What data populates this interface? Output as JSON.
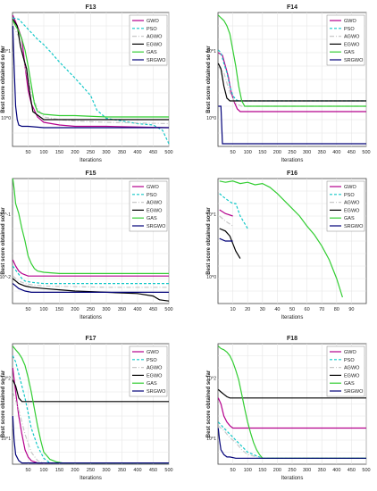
{
  "chart_data": [
    {
      "type": "line",
      "title": "F13",
      "xlabel": "Iterations",
      "ylabel": "Best score obtained so far",
      "xlim": [
        0,
        500
      ],
      "ylim": [
        0,
        1
      ],
      "y_scale": "log",
      "xticks": [
        50,
        100,
        150,
        200,
        250,
        300,
        350,
        400,
        450,
        500
      ],
      "ytick_labels": [
        "10^0",
        "10^1"
      ],
      "grid": true,
      "legend_position": "top-right",
      "series": [
        {
          "name": "GWO",
          "x": [
            1,
            10,
            20,
            30,
            40,
            50,
            60,
            80,
            100,
            150,
            200,
            300,
            500
          ],
          "y": [
            0.98,
            0.93,
            0.87,
            0.8,
            0.6,
            0.42,
            0.32,
            0.22,
            0.18,
            0.16,
            0.15,
            0.15,
            0.14
          ]
        },
        {
          "name": "PSO",
          "x": [
            1,
            20,
            40,
            60,
            80,
            100,
            120,
            150,
            200,
            250,
            270,
            300,
            350,
            400,
            450,
            480,
            500
          ],
          "y": [
            0.96,
            0.95,
            0.9,
            0.85,
            0.8,
            0.76,
            0.71,
            0.63,
            0.51,
            0.38,
            0.27,
            0.21,
            0.19,
            0.17,
            0.16,
            0.12,
            0.02
          ]
        },
        {
          "name": "AGWO",
          "x": [
            1,
            20,
            40,
            60,
            80,
            100,
            150,
            200,
            300,
            500
          ],
          "y": [
            0.9,
            0.82,
            0.6,
            0.4,
            0.28,
            0.22,
            0.2,
            0.19,
            0.18,
            0.17
          ]
        },
        {
          "name": "EGWO",
          "x": [
            1,
            15,
            25,
            35,
            45,
            55,
            65,
            100,
            150,
            300,
            500
          ],
          "y": [
            0.95,
            0.9,
            0.75,
            0.66,
            0.58,
            0.4,
            0.26,
            0.2,
            0.2,
            0.2,
            0.2
          ]
        },
        {
          "name": "GAS",
          "x": [
            1,
            10,
            20,
            30,
            40,
            50,
            60,
            70,
            80,
            100,
            150,
            200,
            300,
            500
          ],
          "y": [
            0.94,
            0.9,
            0.86,
            0.8,
            0.72,
            0.6,
            0.46,
            0.32,
            0.26,
            0.24,
            0.23,
            0.23,
            0.22,
            0.22
          ]
        },
        {
          "name": "SRGWO",
          "x": [
            1,
            5,
            10,
            15,
            20,
            30,
            50,
            100,
            200,
            300,
            500
          ],
          "y": [
            0.9,
            0.6,
            0.3,
            0.2,
            0.16,
            0.15,
            0.15,
            0.14,
            0.14,
            0.14,
            0.14
          ]
        }
      ]
    },
    {
      "type": "line",
      "title": "F14",
      "xlabel": "Iterations",
      "ylabel": "Best score obtained so far",
      "xlim": [
        0,
        500
      ],
      "ylim": [
        0,
        1
      ],
      "y_scale": "log",
      "xticks": [
        50,
        100,
        150,
        200,
        250,
        300,
        350,
        400,
        450,
        500
      ],
      "ytick_labels": [
        "10^0",
        "10^1"
      ],
      "grid": true,
      "legend_position": "top-right",
      "series": [
        {
          "name": "GWO",
          "x": [
            1,
            15,
            25,
            35,
            45,
            55,
            65,
            75,
            500
          ],
          "y": [
            0.7,
            0.68,
            0.6,
            0.52,
            0.4,
            0.33,
            0.28,
            0.26,
            0.26
          ]
        },
        {
          "name": "PSO",
          "x": [
            1,
            10,
            20,
            30,
            40,
            50,
            60,
            70,
            500
          ],
          "y": [
            0.72,
            0.7,
            0.62,
            0.55,
            0.45,
            0.38,
            0.35,
            0.34,
            0.34
          ]
        },
        {
          "name": "AGWO",
          "x": [
            1,
            20,
            40,
            60,
            80,
            500
          ],
          "y": [
            0.6,
            0.55,
            0.4,
            0.32,
            0.3,
            0.3
          ]
        },
        {
          "name": "EGWO",
          "x": [
            1,
            10,
            20,
            30,
            40,
            50,
            60,
            500
          ],
          "y": [
            0.62,
            0.58,
            0.45,
            0.36,
            0.34,
            0.34,
            0.34,
            0.34
          ]
        },
        {
          "name": "GAS",
          "x": [
            1,
            10,
            20,
            30,
            40,
            50,
            60,
            70,
            80,
            90,
            500
          ],
          "y": [
            0.98,
            0.96,
            0.94,
            0.9,
            0.84,
            0.72,
            0.6,
            0.45,
            0.34,
            0.3,
            0.3
          ]
        },
        {
          "name": "SRGWO",
          "x": [
            1,
            10,
            15,
            20,
            500
          ],
          "y": [
            0.3,
            0.3,
            0.02,
            0.02,
            0.02
          ]
        }
      ]
    },
    {
      "type": "line",
      "title": "F15",
      "xlabel": "Iterations",
      "ylabel": "Best score obtained so far",
      "xlim": [
        0,
        500
      ],
      "ylim": [
        0,
        1
      ],
      "y_scale": "log",
      "xticks": [
        50,
        100,
        150,
        200,
        250,
        300,
        350,
        400,
        450,
        500
      ],
      "ytick_labels": [
        "10^-2",
        "10^-1"
      ],
      "grid": true,
      "legend_position": "top-right",
      "series": [
        {
          "name": "GWO",
          "x": [
            1,
            10,
            20,
            30,
            40,
            50,
            500
          ],
          "y": [
            0.35,
            0.3,
            0.26,
            0.24,
            0.23,
            0.22,
            0.22
          ]
        },
        {
          "name": "PSO",
          "x": [
            1,
            15,
            30,
            40,
            60,
            100,
            200,
            500
          ],
          "y": [
            0.3,
            0.25,
            0.2,
            0.18,
            0.17,
            0.16,
            0.16,
            0.16
          ]
        },
        {
          "name": "AGWO",
          "x": [
            1,
            20,
            40,
            60,
            100,
            300,
            500
          ],
          "y": [
            0.22,
            0.18,
            0.16,
            0.15,
            0.14,
            0.13,
            0.13
          ]
        },
        {
          "name": "EGWO",
          "x": [
            1,
            20,
            40,
            60,
            100,
            150,
            200,
            300,
            400,
            450,
            470,
            500
          ],
          "y": [
            0.2,
            0.16,
            0.14,
            0.13,
            0.12,
            0.11,
            0.1,
            0.09,
            0.08,
            0.06,
            0.03,
            0.02
          ]
        },
        {
          "name": "GAS",
          "x": [
            1,
            5,
            10,
            20,
            30,
            40,
            50,
            60,
            70,
            80,
            100,
            150,
            500
          ],
          "y": [
            1.0,
            0.92,
            0.8,
            0.72,
            0.6,
            0.5,
            0.38,
            0.32,
            0.28,
            0.26,
            0.25,
            0.24,
            0.24
          ]
        },
        {
          "name": "SRGWO",
          "x": [
            1,
            20,
            40,
            60,
            80,
            100,
            500
          ],
          "y": [
            0.16,
            0.12,
            0.1,
            0.09,
            0.09,
            0.09,
            0.09
          ]
        }
      ]
    },
    {
      "type": "line",
      "title": "F16",
      "xlabel": "Iterations",
      "ylabel": "Best score obtained so far",
      "xlim": [
        0,
        100
      ],
      "ylim": [
        0,
        1
      ],
      "y_scale": "log",
      "xticks": [
        10,
        20,
        30,
        40,
        50,
        60,
        70,
        80,
        90
      ],
      "ytick_labels": [
        "10^0",
        "10^1"
      ],
      "grid": true,
      "legend_position": "top-right",
      "series": [
        {
          "name": "GWO",
          "x": [
            1,
            5,
            10
          ],
          "y": [
            0.75,
            0.72,
            0.7
          ]
        },
        {
          "name": "PSO",
          "x": [
            1,
            5,
            10,
            12,
            15,
            20
          ],
          "y": [
            0.88,
            0.84,
            0.8,
            0.8,
            0.7,
            0.6
          ]
        },
        {
          "name": "AGWO",
          "x": [
            1,
            5,
            10
          ],
          "y": [
            0.7,
            0.66,
            0.62
          ]
        },
        {
          "name": "EGWO",
          "x": [
            1,
            5,
            8,
            10,
            12,
            15
          ],
          "y": [
            0.6,
            0.58,
            0.54,
            0.48,
            0.42,
            0.36
          ]
        },
        {
          "name": "GAS",
          "x": [
            1,
            5,
            10,
            15,
            20,
            25,
            30,
            35,
            40,
            45,
            50,
            55,
            60,
            65,
            70,
            75,
            80,
            84
          ],
          "y": [
            0.98,
            0.97,
            0.98,
            0.96,
            0.97,
            0.95,
            0.96,
            0.93,
            0.88,
            0.82,
            0.76,
            0.7,
            0.62,
            0.55,
            0.46,
            0.35,
            0.2,
            0.05
          ]
        },
        {
          "name": "SRGWO",
          "x": [
            1,
            5,
            10
          ],
          "y": [
            0.52,
            0.5,
            0.5
          ]
        }
      ]
    },
    {
      "type": "line",
      "title": "F17",
      "xlabel": "Iterations",
      "ylabel": "Best score obtained so far",
      "xlim": [
        0,
        500
      ],
      "ylim": [
        0,
        1
      ],
      "y_scale": "log",
      "xticks": [
        50,
        100,
        150,
        200,
        250,
        300,
        350,
        400,
        450,
        500
      ],
      "ytick_labels": [
        "10^1",
        "10^2"
      ],
      "grid": true,
      "legend_position": "top-right",
      "series": [
        {
          "name": "GWO",
          "x": [
            1,
            10,
            20,
            30,
            40,
            50,
            60,
            80,
            500
          ],
          "y": [
            0.8,
            0.6,
            0.4,
            0.25,
            0.12,
            0.06,
            0.03,
            0.01,
            0.01
          ]
        },
        {
          "name": "PSO",
          "x": [
            1,
            10,
            20,
            40,
            60,
            80,
            100,
            120,
            500
          ],
          "y": [
            0.9,
            0.85,
            0.75,
            0.55,
            0.3,
            0.15,
            0.05,
            0.01,
            0.01
          ]
        },
        {
          "name": "AGWO",
          "x": [
            1,
            20,
            40,
            60,
            80,
            100,
            500
          ],
          "y": [
            0.6,
            0.45,
            0.25,
            0.1,
            0.03,
            0.01,
            0.01
          ]
        },
        {
          "name": "EGWO",
          "x": [
            1,
            10,
            20,
            30,
            40,
            50,
            500
          ],
          "y": [
            0.7,
            0.65,
            0.55,
            0.52,
            0.52,
            0.52,
            0.52
          ]
        },
        {
          "name": "GAS",
          "x": [
            1,
            10,
            20,
            30,
            40,
            50,
            60,
            70,
            80,
            90,
            100,
            120,
            140,
            160,
            500
          ],
          "y": [
            0.98,
            0.95,
            0.92,
            0.88,
            0.82,
            0.72,
            0.6,
            0.46,
            0.32,
            0.2,
            0.1,
            0.04,
            0.02,
            0.01,
            0.01
          ]
        },
        {
          "name": "SRGWO",
          "x": [
            1,
            5,
            10,
            20,
            30,
            40,
            500
          ],
          "y": [
            0.4,
            0.2,
            0.08,
            0.03,
            0.01,
            0.01,
            0.01
          ]
        }
      ]
    },
    {
      "type": "line",
      "title": "F18",
      "xlabel": "Iterations",
      "ylabel": "Best score obtained so far",
      "xlim": [
        0,
        500
      ],
      "ylim": [
        0,
        1
      ],
      "y_scale": "log",
      "xticks": [
        50,
        100,
        150,
        200,
        250,
        300,
        350,
        400,
        450,
        500
      ],
      "ytick_labels": [
        "10^1",
        "10^2"
      ],
      "grid": true,
      "legend_position": "top-right",
      "series": [
        {
          "name": "GWO",
          "x": [
            1,
            10,
            20,
            30,
            40,
            50,
            500
          ],
          "y": [
            0.55,
            0.5,
            0.4,
            0.35,
            0.32,
            0.3,
            0.3
          ]
        },
        {
          "name": "PSO",
          "x": [
            1,
            20,
            40,
            60,
            80,
            100,
            150,
            500
          ],
          "y": [
            0.35,
            0.3,
            0.25,
            0.2,
            0.15,
            0.1,
            0.05,
            0.05
          ]
        },
        {
          "name": "AGWO",
          "x": [
            1,
            20,
            40,
            60,
            80,
            100,
            150,
            500
          ],
          "y": [
            0.32,
            0.28,
            0.22,
            0.18,
            0.12,
            0.08,
            0.05,
            0.05
          ]
        },
        {
          "name": "EGWO",
          "x": [
            1,
            10,
            20,
            30,
            40,
            50,
            500
          ],
          "y": [
            0.62,
            0.6,
            0.58,
            0.56,
            0.55,
            0.55,
            0.55
          ]
        },
        {
          "name": "GAS",
          "x": [
            1,
            10,
            20,
            30,
            40,
            50,
            60,
            70,
            80,
            90,
            100,
            110,
            120,
            130,
            140,
            150,
            500
          ],
          "y": [
            0.98,
            0.96,
            0.95,
            0.93,
            0.9,
            0.85,
            0.78,
            0.7,
            0.58,
            0.46,
            0.35,
            0.26,
            0.18,
            0.12,
            0.08,
            0.05,
            0.05
          ]
        },
        {
          "name": "SRGWO",
          "x": [
            1,
            5,
            10,
            20,
            30,
            40,
            60,
            80,
            500
          ],
          "y": [
            0.3,
            0.2,
            0.12,
            0.08,
            0.06,
            0.06,
            0.05,
            0.05,
            0.05
          ]
        }
      ]
    }
  ],
  "colors": {
    "GWO": "#b4008c",
    "PSO": "#14c8c8",
    "AGWO": "#c8c8c8",
    "EGWO": "#000000",
    "GAS": "#32cd32",
    "SRGWO": "#000078"
  }
}
